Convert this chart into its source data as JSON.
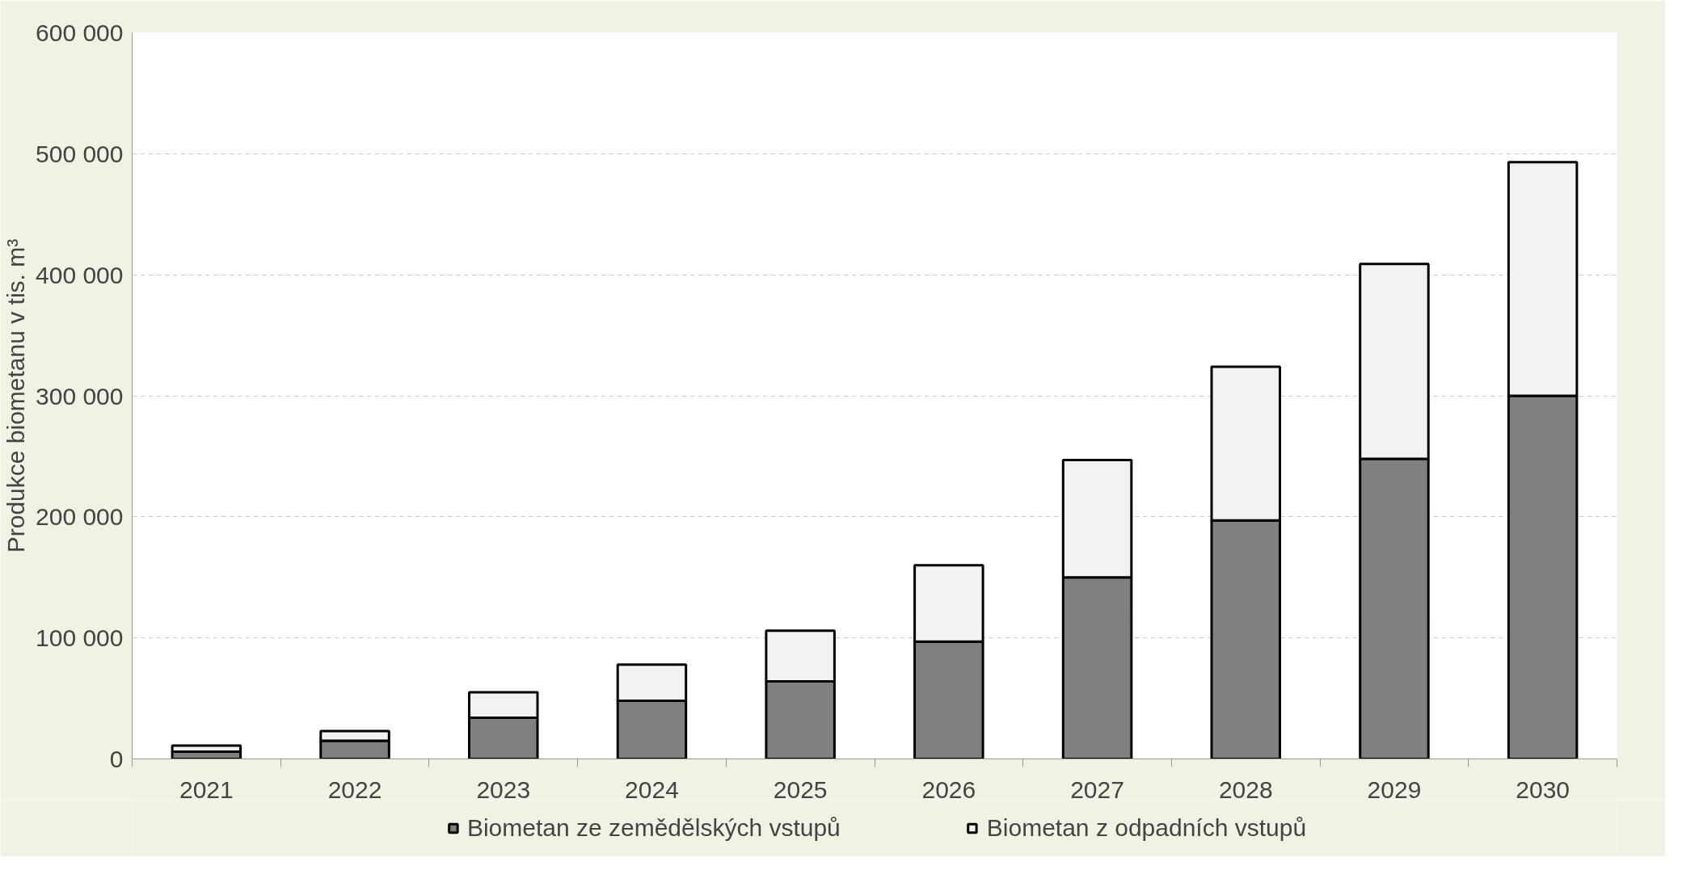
{
  "chart_data": {
    "type": "bar",
    "stacked": true,
    "ylabel": "Produkce biometanu v tis. m³",
    "categories": [
      "2021",
      "2022",
      "2023",
      "2024",
      "2025",
      "2026",
      "2027",
      "2028",
      "2029",
      "2030"
    ],
    "series": [
      {
        "name": "Biometan ze zemědělských vstupů",
        "color": "#808080",
        "values": [
          6000,
          15000,
          34000,
          48000,
          64000,
          97000,
          150000,
          197000,
          248000,
          300000
        ]
      },
      {
        "name": "Biometan z odpadních vstupů",
        "color": "#f2f2f2",
        "values": [
          5000,
          8000,
          21000,
          30000,
          42000,
          63000,
          97000,
          127000,
          161000,
          193000
        ]
      }
    ],
    "ylim": [
      0,
      600000
    ],
    "yticks": [
      0,
      {
        "value": 100000,
        "label": "100 000"
      },
      {
        "value": 200000,
        "label": "200 000"
      },
      {
        "value": 300000,
        "label": "300 000"
      },
      {
        "value": 400000,
        "label": "400 000"
      },
      {
        "value": 500000,
        "label": "500 000"
      },
      {
        "value": 600000,
        "label": "600 000"
      }
    ],
    "grid": "y",
    "legend": "bottom"
  }
}
